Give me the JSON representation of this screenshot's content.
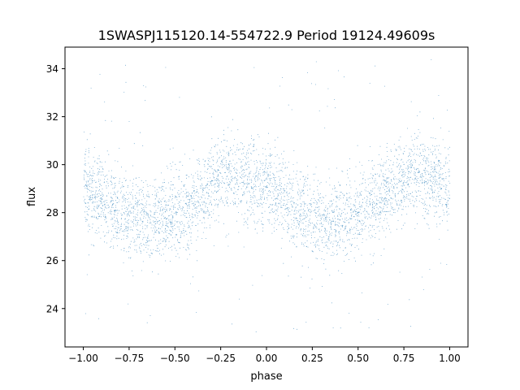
{
  "chart_data": {
    "type": "scatter",
    "title": "1SWASPJ115120.14-554722.9 Period 19124.49609s",
    "xlabel": "phase",
    "ylabel": "flux",
    "xlim": [
      -1.1,
      1.1
    ],
    "ylim": [
      22.4,
      34.9
    ],
    "x_ticks": [
      -1.0,
      -0.75,
      -0.5,
      -0.25,
      0.0,
      0.25,
      0.5,
      0.75,
      1.0
    ],
    "x_tick_labels": [
      "−1.00",
      "−0.75",
      "−0.50",
      "−0.25",
      "0.00",
      "0.25",
      "0.50",
      "0.75",
      "1.00"
    ],
    "y_ticks": [
      24,
      26,
      28,
      30,
      32,
      34
    ],
    "y_tick_labels": [
      "24",
      "26",
      "28",
      "30",
      "32",
      "34"
    ],
    "grid": false,
    "legend": false,
    "series": [
      {
        "marker_color": "#1f77b4",
        "trend_phase": [
          -1.0,
          -0.9,
          -0.8,
          -0.7,
          -0.6,
          -0.5,
          -0.4,
          -0.3,
          -0.2,
          -0.1,
          0.0,
          0.1,
          0.2,
          0.3,
          0.4,
          0.5,
          0.6,
          0.7,
          0.8,
          0.9,
          1.0
        ],
        "trend_flux": [
          29.0,
          28.6,
          28.0,
          27.8,
          27.8,
          27.9,
          28.3,
          29.2,
          29.6,
          29.4,
          28.9,
          28.5,
          28.0,
          27.8,
          27.8,
          27.9,
          28.4,
          29.2,
          29.6,
          29.4,
          29.0
        ],
        "scatter_sd": 0.85,
        "outlier_range": [
          23.0,
          34.4
        ],
        "approx_point_count": 20000
      }
    ]
  }
}
